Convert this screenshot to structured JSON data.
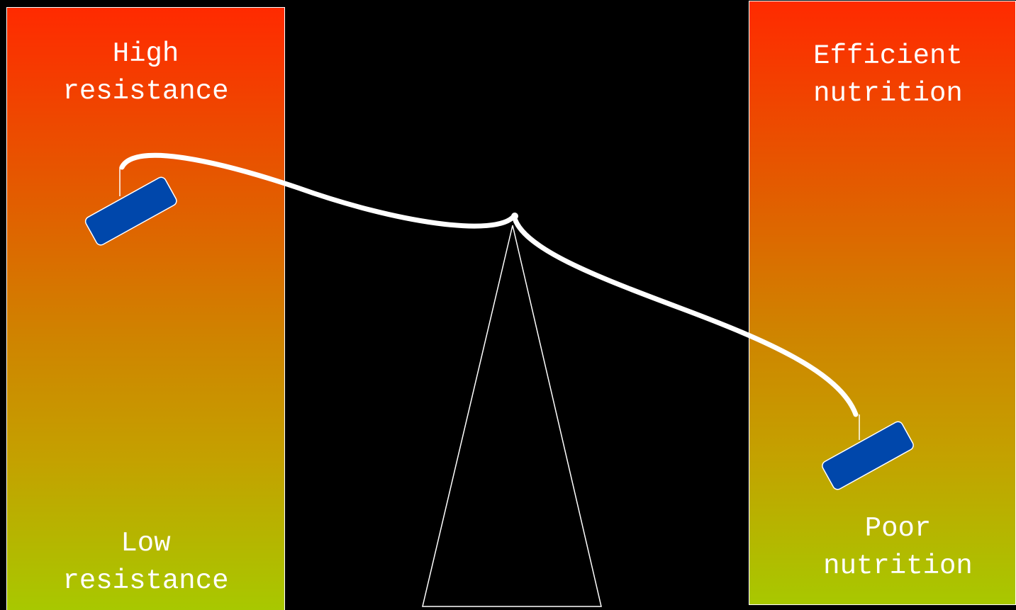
{
  "left_panel": {
    "top_label_line1": "High",
    "top_label_line2": "resistance",
    "bottom_label_line1": "Low",
    "bottom_label_line2": "resistance"
  },
  "right_panel": {
    "top_label_line1": "Efficient",
    "top_label_line2": "nutrition",
    "bottom_label_line1": "Poor",
    "bottom_label_line2": "nutrition"
  },
  "colors": {
    "background": "#000000",
    "panel_gradient_top": "#ff2a00",
    "panel_gradient_bottom": "#a8c800",
    "pan_fill": "#0047ab",
    "beam": "#ffffff"
  }
}
